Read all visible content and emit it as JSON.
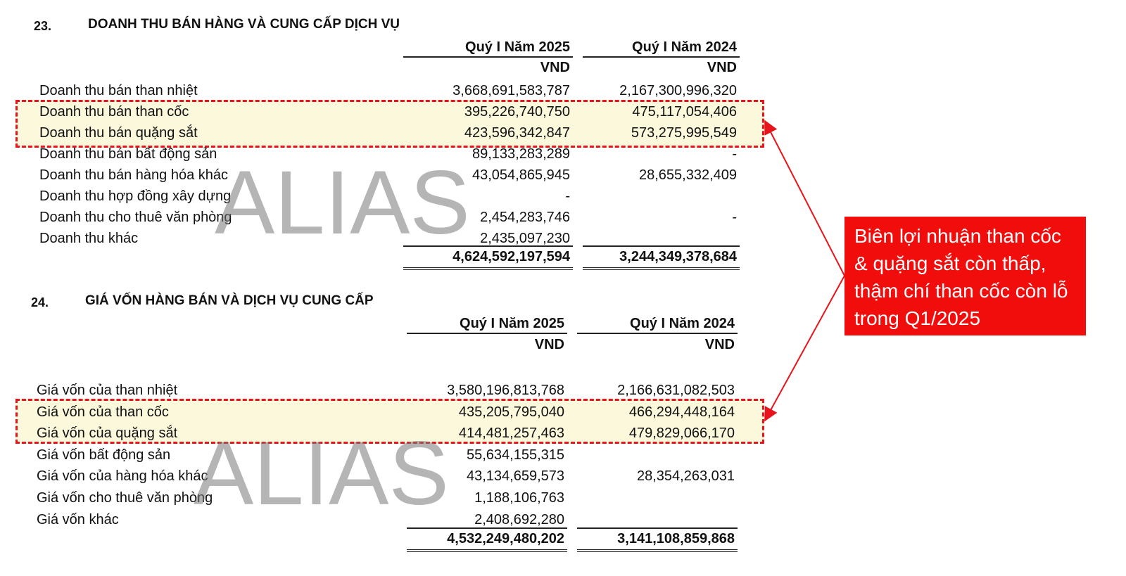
{
  "sections": [
    {
      "number": "23.",
      "title": "DOANH THU BÁN HÀNG VÀ CUNG CẤP DỊCH VỤ",
      "columns": [
        "Quý I Năm 2025",
        "Quý I Năm 2024"
      ],
      "units": [
        "VND",
        "VND"
      ],
      "rows": [
        [
          "Doanh thu bán than nhiệt",
          "3,668,691,583,787",
          "2,167,300,996,320"
        ],
        [
          "Doanh thu bán than cốc",
          "395,226,740,750",
          "475,117,054,406"
        ],
        [
          "Doanh thu bán quặng sắt",
          "423,596,342,847",
          "573,275,995,549"
        ],
        [
          "Doanh thu bán bất động sản",
          "89,133,283,289",
          "-"
        ],
        [
          "Doanh thu bán hàng hóa khác",
          "43,054,865,945",
          "28,655,332,409"
        ],
        [
          "Doanh thu hợp đồng xây dựng",
          "-",
          null
        ],
        [
          "Doanh thu cho thuê văn phòng",
          "2,454,283,746",
          "-"
        ],
        [
          "Doanh thu khác",
          "2,435,097,230",
          null
        ]
      ],
      "total": [
        "4,624,592,197,594",
        "3,244,349,378,684"
      ]
    },
    {
      "number": "24.",
      "title": "GIÁ VỐN HÀNG BÁN VÀ DỊCH VỤ CUNG CẤP",
      "columns": [
        "Quý I Năm 2025",
        "Quý I Năm 2024"
      ],
      "units": [
        "VND",
        "VND"
      ],
      "rows": [
        [
          "Giá vốn của than nhiệt",
          "3,580,196,813,768",
          "2,166,631,082,503"
        ],
        [
          "Giá vốn của than cốc",
          "435,205,795,040",
          "466,294,448,164"
        ],
        [
          "Giá vốn của quặng sắt",
          "414,481,257,463",
          "479,829,066,170"
        ],
        [
          "Giá vốn bất động sản",
          "55,634,155,315",
          null
        ],
        [
          "Giá vốn của hàng hóa khác",
          "43,134,659,573",
          "28,354,263,031"
        ],
        [
          "Giá vốn cho thuê văn phòng",
          "1,188,106,763",
          null
        ],
        [
          "Giá vốn khác",
          "2,408,692,280",
          null
        ]
      ],
      "total": [
        "4,532,249,480,202",
        "3,141,108,859,868"
      ]
    }
  ],
  "watermarks": [
    "ALIAS",
    "ALIAS"
  ],
  "callout": "Biên lợi nhuận than cốc & quặng sắt còn thấp, thậm chí than cốc còn lỗ trong Q1/2025"
}
